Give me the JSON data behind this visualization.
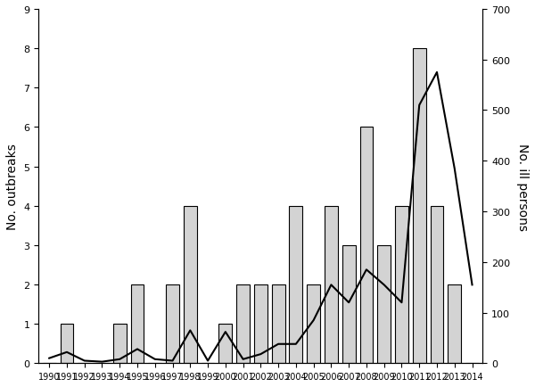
{
  "years": [
    1990,
    1991,
    1992,
    1993,
    1994,
    1995,
    1996,
    1997,
    1998,
    1999,
    2000,
    2001,
    2002,
    2003,
    2004,
    2005,
    2006,
    2007,
    2008,
    2009,
    2010,
    2011,
    2012,
    2013,
    2014
  ],
  "outbreaks": [
    0,
    1,
    0,
    0,
    1,
    2,
    0,
    2,
    4,
    0,
    1,
    2,
    2,
    2,
    4,
    2,
    4,
    3,
    6,
    3,
    4,
    8,
    4,
    2,
    0
  ],
  "ill_persons": [
    10,
    22,
    5,
    3,
    8,
    28,
    8,
    5,
    65,
    5,
    62,
    8,
    18,
    38,
    38,
    85,
    155,
    120,
    185,
    155,
    120,
    510,
    575,
    385,
    155
  ],
  "bar_color": "#d3d3d3",
  "bar_edgecolor": "#000000",
  "line_color": "#000000",
  "ylabel_left": "No. outbreaks",
  "ylabel_right": "No. ill persons",
  "ylim_left": [
    0,
    9
  ],
  "ylim_right": [
    0,
    700
  ],
  "yticks_left": [
    0,
    1,
    2,
    3,
    4,
    5,
    6,
    7,
    8,
    9
  ],
  "yticks_right": [
    0,
    100,
    200,
    300,
    400,
    500,
    600,
    700
  ],
  "background_color": "#ffffff",
  "linewidth": 1.5,
  "figsize": [
    6.0,
    4.35
  ],
  "dpi": 100
}
